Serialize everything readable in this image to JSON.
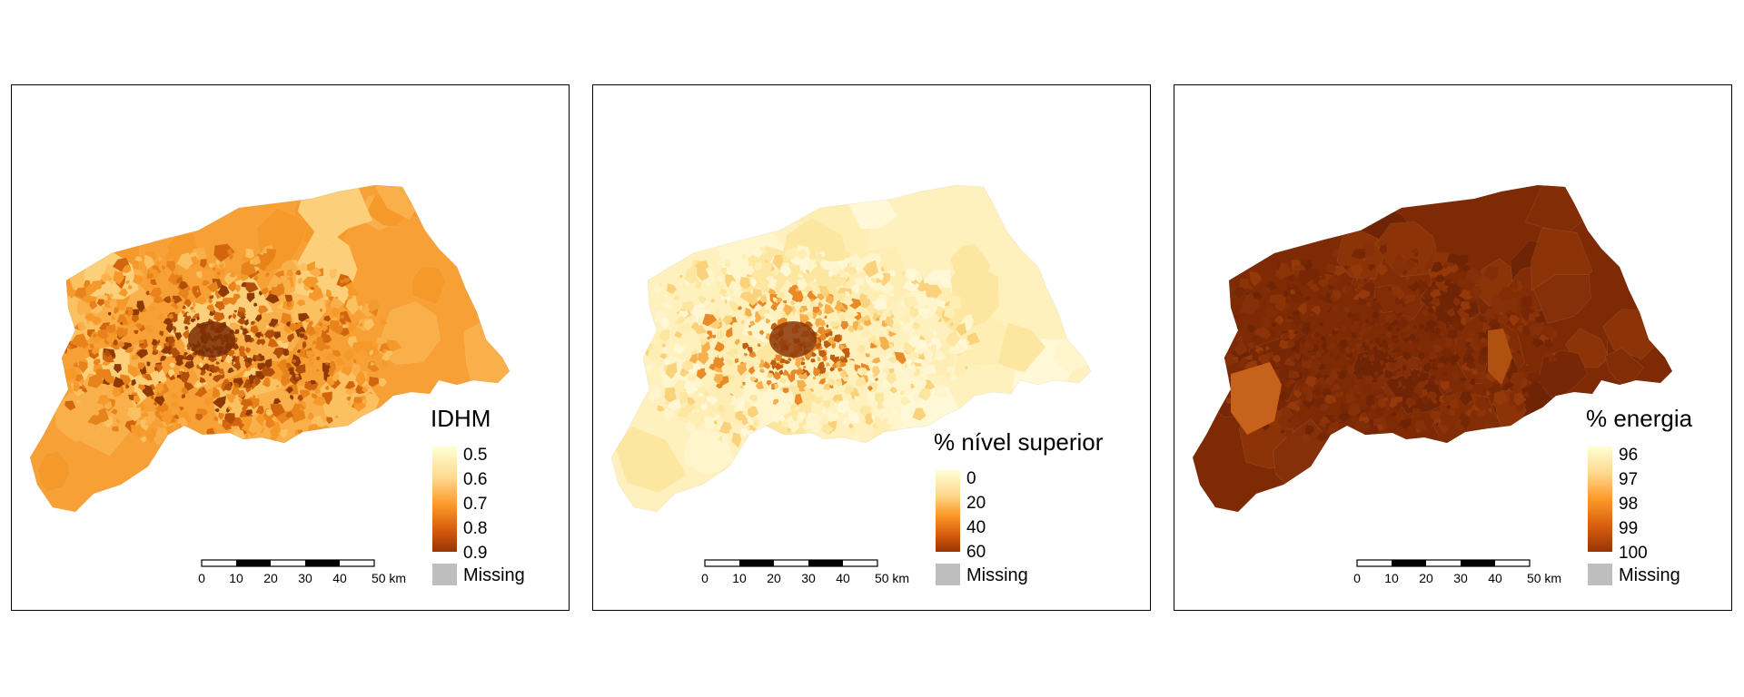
{
  "colors": {
    "ramp_light": "#ffffd4",
    "ramp_mid1": "#fed98e",
    "ramp_mid2": "#fe9929",
    "ramp_mid3": "#d95f0e",
    "ramp_dark": "#993404",
    "missing": "#bebebe"
  },
  "scale_labels": [
    "0",
    "10",
    "20",
    "30",
    "40",
    "50 km"
  ],
  "missing_label": "Missing",
  "maps": [
    {
      "legend_title": "IDHM",
      "legend_ticks": [
        "0.5",
        "0.6",
        "0.7",
        "0.8",
        "0.9"
      ],
      "fill_base": "#f7a035",
      "fill_variants": [
        "#f9b04a",
        "#fbc060",
        "#f59a2a",
        "#e8831c",
        "#d1660f",
        "#b14e0a",
        "#8f3a06",
        "#fcd07a"
      ],
      "core_color": "#7a2e06"
    },
    {
      "legend_title": "% nível superior",
      "legend_ticks": [
        "0",
        "20",
        "40",
        "60"
      ],
      "fill_base": "#fff1be",
      "fill_variants": [
        "#fff5cc",
        "#ffeeb4",
        "#fde6a0",
        "#fbd27c",
        "#f7b04e",
        "#e98a28",
        "#c25e10",
        "#fff8d6"
      ],
      "core_color": "#8a3508"
    },
    {
      "legend_title": "% energia",
      "legend_ticks": [
        "96",
        "97",
        "98",
        "99",
        "100"
      ],
      "fill_base": "#7d2a05",
      "fill_variants": [
        "#822d06",
        "#772705",
        "#8c3307",
        "#95390a",
        "#a9470f",
        "#c6621b",
        "#6f2405",
        "#86300a"
      ],
      "core_color": "#6e2304"
    }
  ]
}
